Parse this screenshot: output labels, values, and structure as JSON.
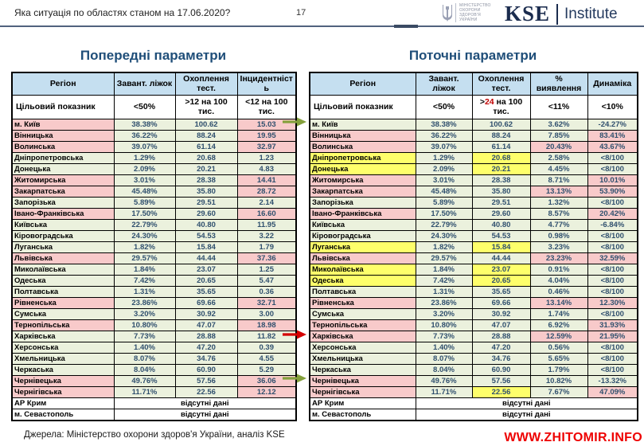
{
  "page": {
    "title": "Яка ситуація по областях станом на 17.06.2020?",
    "page_number": "17"
  },
  "logos": {
    "ministry_lines": [
      "МІНІСТЕРСТВО",
      "ОХОРОНИ",
      "ЗДОРОВ'Я",
      "УКРАЇНИ"
    ],
    "kse": "KSE",
    "kse_suffix": "Institute"
  },
  "colors": {
    "green": "#ebf1dd",
    "pink": "#f8caca",
    "yellow": "#feff6b",
    "header_blue": "#c5dff0",
    "title_navy": "#1f4e79",
    "accent_red": "#c00000",
    "arrow_green": "#84a03c",
    "arrow_red": "#d40000",
    "watermark_red": "#ee0000"
  },
  "left_table": {
    "title": "Попередні параметри",
    "columns": [
      "Регіон",
      "Завант. ліжок",
      "Охоплення тест.",
      "Інцидентність"
    ],
    "target_label": "Цільовий показник",
    "targets": [
      "<50%",
      ">12 на 100 тис.",
      "<12 на 100 тис."
    ],
    "no_data_text": "відсутні дані",
    "no_data_rows": [
      "АР Крим",
      "м. Севастополь"
    ],
    "rows": [
      {
        "region": "м. Київ",
        "region_color": "pink",
        "values": [
          "38.38%",
          "100.62",
          "15.03"
        ],
        "value_colors": [
          "green",
          "green",
          "pink"
        ]
      },
      {
        "region": "Вінницька",
        "region_color": "pink",
        "values": [
          "36.22%",
          "88.24",
          "19.95"
        ],
        "value_colors": [
          "green",
          "green",
          "pink"
        ]
      },
      {
        "region": "Волинська",
        "region_color": "pink",
        "values": [
          "39.07%",
          "61.14",
          "32.97"
        ],
        "value_colors": [
          "green",
          "green",
          "pink"
        ]
      },
      {
        "region": "Дніпропетровська",
        "region_color": "green",
        "values": [
          "1.29%",
          "20.68",
          "1.23"
        ],
        "value_colors": [
          "green",
          "green",
          "green"
        ]
      },
      {
        "region": "Донецька",
        "region_color": "green",
        "values": [
          "2.09%",
          "20.21",
          "4.83"
        ],
        "value_colors": [
          "green",
          "green",
          "green"
        ]
      },
      {
        "region": "Житомирська",
        "region_color": "pink",
        "values": [
          "3.01%",
          "28.38",
          "14.41"
        ],
        "value_colors": [
          "green",
          "green",
          "pink"
        ]
      },
      {
        "region": "Закарпатська",
        "region_color": "pink",
        "values": [
          "45.48%",
          "35.80",
          "28.72"
        ],
        "value_colors": [
          "green",
          "green",
          "pink"
        ]
      },
      {
        "region": "Запорізька",
        "region_color": "green",
        "values": [
          "5.89%",
          "29.51",
          "2.14"
        ],
        "value_colors": [
          "green",
          "green",
          "green"
        ]
      },
      {
        "region": "Івано-Франківська",
        "region_color": "pink",
        "values": [
          "17.50%",
          "29.60",
          "16.60"
        ],
        "value_colors": [
          "green",
          "green",
          "pink"
        ]
      },
      {
        "region": "Київська",
        "region_color": "green",
        "values": [
          "22.79%",
          "40.80",
          "11.95"
        ],
        "value_colors": [
          "green",
          "green",
          "green"
        ]
      },
      {
        "region": "Кіровоградська",
        "region_color": "green",
        "values": [
          "24.30%",
          "54.53",
          "3.22"
        ],
        "value_colors": [
          "green",
          "green",
          "green"
        ]
      },
      {
        "region": "Луганська",
        "region_color": "green",
        "values": [
          "1.82%",
          "15.84",
          "1.79"
        ],
        "value_colors": [
          "green",
          "green",
          "green"
        ]
      },
      {
        "region": "Львівська",
        "region_color": "pink",
        "values": [
          "29.57%",
          "44.44",
          "37.36"
        ],
        "value_colors": [
          "green",
          "green",
          "pink"
        ]
      },
      {
        "region": "Миколаївська",
        "region_color": "green",
        "values": [
          "1.84%",
          "23.07",
          "1.25"
        ],
        "value_colors": [
          "green",
          "green",
          "green"
        ]
      },
      {
        "region": "Одеська",
        "region_color": "green",
        "values": [
          "7.42%",
          "20.65",
          "5.47"
        ],
        "value_colors": [
          "green",
          "green",
          "green"
        ]
      },
      {
        "region": "Полтавська",
        "region_color": "green",
        "values": [
          "1.31%",
          "35.65",
          "0.36"
        ],
        "value_colors": [
          "green",
          "green",
          "green"
        ]
      },
      {
        "region": "Рівненська",
        "region_color": "pink",
        "values": [
          "23.86%",
          "69.66",
          "32.71"
        ],
        "value_colors": [
          "green",
          "green",
          "pink"
        ]
      },
      {
        "region": "Сумська",
        "region_color": "green",
        "values": [
          "3.20%",
          "30.92",
          "3.00"
        ],
        "value_colors": [
          "green",
          "green",
          "green"
        ]
      },
      {
        "region": "Тернопільська",
        "region_color": "pink",
        "values": [
          "10.80%",
          "47.07",
          "18.98"
        ],
        "value_colors": [
          "green",
          "green",
          "pink"
        ]
      },
      {
        "region": "Харківська",
        "region_color": "green",
        "values": [
          "7.73%",
          "28.88",
          "11.82"
        ],
        "value_colors": [
          "green",
          "green",
          "green"
        ]
      },
      {
        "region": "Херсонська",
        "region_color": "green",
        "values": [
          "1.40%",
          "47.20",
          "0.39"
        ],
        "value_colors": [
          "green",
          "green",
          "green"
        ]
      },
      {
        "region": "Хмельницька",
        "region_color": "green",
        "values": [
          "8.07%",
          "34.76",
          "4.55"
        ],
        "value_colors": [
          "green",
          "green",
          "green"
        ]
      },
      {
        "region": "Черкаська",
        "region_color": "green",
        "values": [
          "8.04%",
          "60.90",
          "5.29"
        ],
        "value_colors": [
          "green",
          "green",
          "green"
        ]
      },
      {
        "region": "Чернівецька",
        "region_color": "pink",
        "values": [
          "49.76%",
          "57.56",
          "36.06"
        ],
        "value_colors": [
          "green",
          "green",
          "pink"
        ]
      },
      {
        "region": "Чернігівська",
        "region_color": "pink",
        "values": [
          "11.71%",
          "22.56",
          "12.12"
        ],
        "value_colors": [
          "green",
          "green",
          "pink"
        ]
      }
    ]
  },
  "right_table": {
    "title": "Поточні параметри",
    "columns": [
      "Регіон",
      "Завант. ліжок",
      "Охоплення тест.",
      "% виявлення",
      "Динаміка"
    ],
    "target_label": "Цільовий показник",
    "targets": [
      "<50%",
      ">24 на 100 тис.",
      "<11%",
      "<10%"
    ],
    "target_accent": "24",
    "no_data_text": "відсутні дані",
    "no_data_rows": [
      "АР Крим",
      "м. Севастополь"
    ],
    "rows": [
      {
        "region": "м. Київ",
        "region_color": "green",
        "values": [
          "38.38%",
          "100.62",
          "3.62%",
          "-24.27%"
        ],
        "value_colors": [
          "green",
          "green",
          "green",
          "green"
        ]
      },
      {
        "region": "Вінницька",
        "region_color": "pink",
        "values": [
          "36.22%",
          "88.24",
          "7.85%",
          "83.41%"
        ],
        "value_colors": [
          "green",
          "green",
          "green",
          "pink"
        ]
      },
      {
        "region": "Волинська",
        "region_color": "pink",
        "values": [
          "39.07%",
          "61.14",
          "20.43%",
          "43.67%"
        ],
        "value_colors": [
          "green",
          "green",
          "pink",
          "pink"
        ]
      },
      {
        "region": "Дніпропетровська",
        "region_color": "yellow",
        "values": [
          "1.29%",
          "20.68",
          "2.58%",
          "<8/100"
        ],
        "value_colors": [
          "green",
          "yellow",
          "green",
          "green"
        ]
      },
      {
        "region": "Донецька",
        "region_color": "yellow",
        "values": [
          "2.09%",
          "20.21",
          "4.45%",
          "<8/100"
        ],
        "value_colors": [
          "green",
          "yellow",
          "green",
          "green"
        ]
      },
      {
        "region": "Житомирська",
        "region_color": "pink",
        "values": [
          "3.01%",
          "28.38",
          "8.71%",
          "10.01%"
        ],
        "value_colors": [
          "green",
          "green",
          "green",
          "pink"
        ]
      },
      {
        "region": "Закарпатська",
        "region_color": "pink",
        "values": [
          "45.48%",
          "35.80",
          "13.13%",
          "53.90%"
        ],
        "value_colors": [
          "green",
          "green",
          "pink",
          "pink"
        ]
      },
      {
        "region": "Запорізька",
        "region_color": "green",
        "values": [
          "5.89%",
          "29.51",
          "1.32%",
          "<8/100"
        ],
        "value_colors": [
          "green",
          "green",
          "green",
          "green"
        ]
      },
      {
        "region": "Івано-Франківська",
        "region_color": "pink",
        "values": [
          "17.50%",
          "29.60",
          "8.57%",
          "20.42%"
        ],
        "value_colors": [
          "green",
          "green",
          "green",
          "pink"
        ]
      },
      {
        "region": "Київська",
        "region_color": "green",
        "values": [
          "22.79%",
          "40.80",
          "4.77%",
          "-6.84%"
        ],
        "value_colors": [
          "green",
          "green",
          "green",
          "green"
        ]
      },
      {
        "region": "Кіровоградська",
        "region_color": "green",
        "values": [
          "24.30%",
          "54.53",
          "0.98%",
          "<8/100"
        ],
        "value_colors": [
          "green",
          "green",
          "green",
          "green"
        ]
      },
      {
        "region": "Луганська",
        "region_color": "yellow",
        "values": [
          "1.82%",
          "15.84",
          "3.23%",
          "<8/100"
        ],
        "value_colors": [
          "green",
          "yellow",
          "green",
          "green"
        ]
      },
      {
        "region": "Львівська",
        "region_color": "pink",
        "values": [
          "29.57%",
          "44.44",
          "23.23%",
          "32.59%"
        ],
        "value_colors": [
          "green",
          "green",
          "pink",
          "pink"
        ]
      },
      {
        "region": "Миколаївська",
        "region_color": "yellow",
        "values": [
          "1.84%",
          "23.07",
          "0.91%",
          "<8/100"
        ],
        "value_colors": [
          "green",
          "yellow",
          "green",
          "green"
        ]
      },
      {
        "region": "Одеська",
        "region_color": "yellow",
        "values": [
          "7.42%",
          "20.65",
          "4.04%",
          "<8/100"
        ],
        "value_colors": [
          "green",
          "yellow",
          "green",
          "green"
        ]
      },
      {
        "region": "Полтавська",
        "region_color": "green",
        "values": [
          "1.31%",
          "35.65",
          "0.46%",
          "<8/100"
        ],
        "value_colors": [
          "green",
          "green",
          "green",
          "green"
        ]
      },
      {
        "region": "Рівненська",
        "region_color": "pink",
        "values": [
          "23.86%",
          "69.66",
          "13.14%",
          "12.30%"
        ],
        "value_colors": [
          "green",
          "green",
          "pink",
          "pink"
        ]
      },
      {
        "region": "Сумська",
        "region_color": "green",
        "values": [
          "3.20%",
          "30.92",
          "1.74%",
          "<8/100"
        ],
        "value_colors": [
          "green",
          "green",
          "green",
          "green"
        ]
      },
      {
        "region": "Тернопільська",
        "region_color": "pink",
        "values": [
          "10.80%",
          "47.07",
          "6.92%",
          "31.93%"
        ],
        "value_colors": [
          "green",
          "green",
          "green",
          "pink"
        ]
      },
      {
        "region": "Харківська",
        "region_color": "pink",
        "values": [
          "7.73%",
          "28.88",
          "12.59%",
          "21.95%"
        ],
        "value_colors": [
          "green",
          "green",
          "pink",
          "pink"
        ]
      },
      {
        "region": "Херсонська",
        "region_color": "green",
        "values": [
          "1.40%",
          "47.20",
          "0.56%",
          "<8/100"
        ],
        "value_colors": [
          "green",
          "green",
          "green",
          "green"
        ]
      },
      {
        "region": "Хмельницька",
        "region_color": "green",
        "values": [
          "8.07%",
          "34.76",
          "5.65%",
          "<8/100"
        ],
        "value_colors": [
          "green",
          "green",
          "green",
          "green"
        ]
      },
      {
        "region": "Черкаська",
        "region_color": "green",
        "values": [
          "8.04%",
          "60.90",
          "1.79%",
          "<8/100"
        ],
        "value_colors": [
          "green",
          "green",
          "green",
          "green"
        ]
      },
      {
        "region": "Чернівецька",
        "region_color": "pink",
        "values": [
          "49.76%",
          "57.56",
          "10.82%",
          "-13.32%"
        ],
        "value_colors": [
          "green",
          "green",
          "green",
          "green"
        ]
      },
      {
        "region": "Чернігівська",
        "region_color": "pink",
        "values": [
          "11.71%",
          "22.56",
          "7.67%",
          "47.09%"
        ],
        "value_colors": [
          "green",
          "yellow",
          "green",
          "pink"
        ]
      }
    ]
  },
  "arrows": [
    {
      "target_row": "м. Київ",
      "color": "green"
    },
    {
      "target_row": "Харківська",
      "color": "red"
    },
    {
      "target_row": "Чернівецька",
      "color": "green"
    }
  ],
  "footer": {
    "source": "Джерела: Міністерство охорони здоров'я України, аналіз KSE"
  },
  "watermark": "WWW.ZHITOMIR.INFO"
}
